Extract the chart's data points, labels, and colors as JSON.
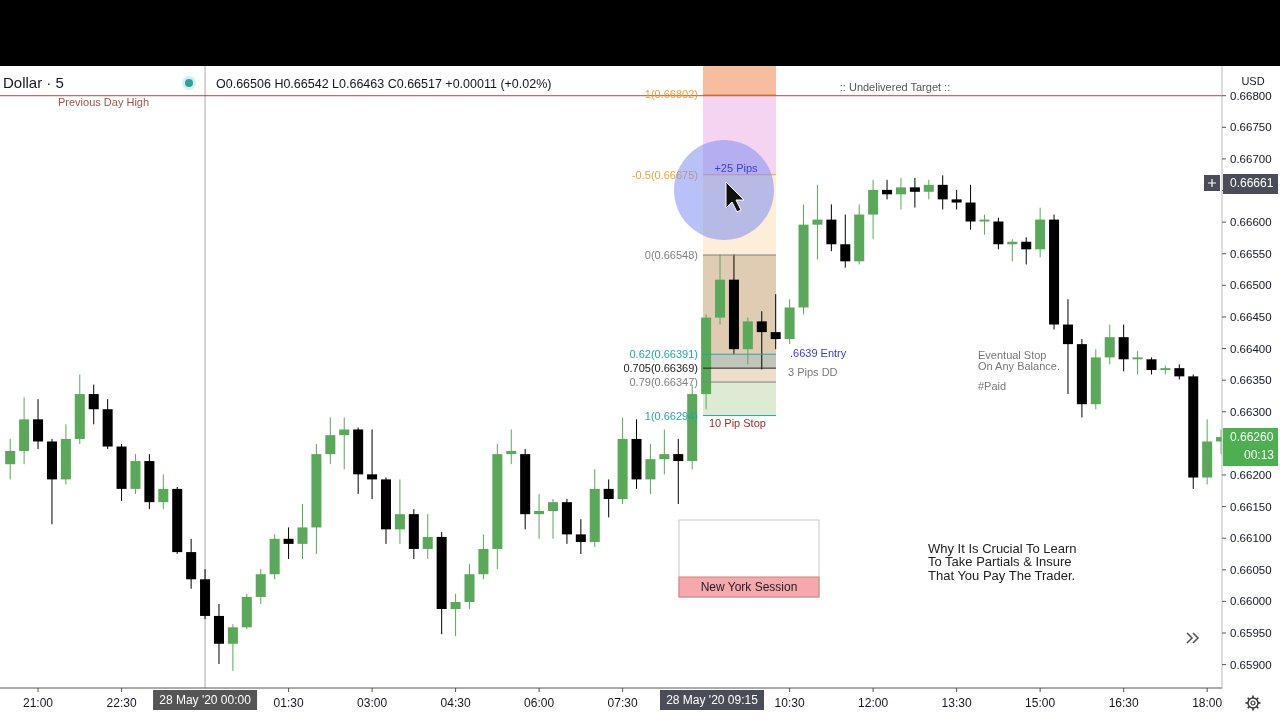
{
  "chart_data": {
    "type": "candlestick",
    "title": "Dollar · 5",
    "subtitle": "O0.66506 H0.66542 L0.66463 C0.66517 +0.00011 (+0.02%)",
    "ylabel": "USD",
    "xlim": [
      "2020-05-27T20:19",
      "2020-05-28T18:16"
    ],
    "ylim": [
      0.65863,
      0.66847
    ],
    "xticks": [
      {
        "value": "2020-05-27T21:00",
        "label": "21:00"
      },
      {
        "value": "2020-05-27T22:30",
        "label": "22:30"
      },
      {
        "value": "2020-05-28T01:30",
        "label": "01:30"
      },
      {
        "value": "2020-05-28T03:00",
        "label": "03:00"
      },
      {
        "value": "2020-05-28T04:30",
        "label": "04:30"
      },
      {
        "value": "2020-05-28T06:00",
        "label": "06:00"
      },
      {
        "value": "2020-05-28T07:30",
        "label": "07:30"
      },
      {
        "value": "2020-05-28T10:30",
        "label": "10:30"
      },
      {
        "value": "2020-05-28T12:00",
        "label": "12:00"
      },
      {
        "value": "2020-05-28T13:30",
        "label": "13:30"
      },
      {
        "value": "2020-05-28T15:00",
        "label": "15:00"
      },
      {
        "value": "2020-05-28T16:30",
        "label": "16:30"
      },
      {
        "value": "2020-05-28T18:00",
        "label": "18:00"
      }
    ],
    "yticks": [
      {
        "value": 0.659,
        "label": "0.65900"
      },
      {
        "value": 0.6595,
        "label": "0.65950"
      },
      {
        "value": 0.66,
        "label": "0.66000"
      },
      {
        "value": 0.6605,
        "label": "0.66050"
      },
      {
        "value": 0.661,
        "label": "0.66100"
      },
      {
        "value": 0.6615,
        "label": "0.66150"
      },
      {
        "value": 0.662,
        "label": "0.66200"
      },
      {
        "value": 0.663,
        "label": "0.66300"
      },
      {
        "value": 0.6635,
        "label": "0.66350"
      },
      {
        "value": 0.664,
        "label": "0.66400"
      },
      {
        "value": 0.6645,
        "label": "0.66450"
      },
      {
        "value": 0.665,
        "label": "0.66500"
      },
      {
        "value": 0.6655,
        "label": "0.66550"
      },
      {
        "value": 0.666,
        "label": "0.66600"
      },
      {
        "value": 0.6665,
        "label": null
      },
      {
        "value": 0.667,
        "label": "0.66700"
      },
      {
        "value": 0.6675,
        "label": "0.66750"
      },
      {
        "value": 0.668,
        "label": "0.66800"
      }
    ],
    "series": [
      {
        "colors": [
          "#5aa85a",
          "#5aa85a",
          "#000000",
          "#000000",
          "#5aa85a",
          "#5aa85a",
          "#000000",
          "#000000",
          "#000000",
          "#5aa85a",
          "#000000",
          "#5aa85a",
          "#000000",
          "#000000",
          "#000000",
          "#000000",
          "#5aa85a",
          "#5aa85a",
          "#5aa85a",
          "#5aa85a",
          "#000000",
          "#5aa85a",
          "#5aa85a",
          "#5aa85a",
          "#5aa85a",
          "#000000",
          "#000000",
          "#000000",
          "#5aa85a",
          "#000000",
          "#5aa85a",
          "#000000",
          "#5aa85a",
          "#5aa85a",
          "#5aa85a",
          "#5aa85a",
          "#5aa85a",
          "#000000",
          "#5aa85a",
          "#5aa85a",
          "#000000",
          "#000000",
          "#5aa85a",
          "#000000",
          "#5aa85a",
          "#000000",
          "#5aa85a",
          "#5aa85a",
          "#000000",
          "#5aa85a",
          "#5aa85a",
          "#5aa85a",
          "#000000",
          "#5aa85a",
          "#000000",
          "#000000",
          "#5aa85a",
          "#5aa85a",
          "#5aa85a",
          "#000000",
          "#000000",
          "#5aa85a",
          "#5aa85a",
          "#000000",
          "#5aa85a",
          "#000000",
          "#5aa85a",
          "#000000",
          "#000000",
          "#000000",
          "#5aa85a",
          "#000000",
          "#5aa85a",
          "#000000",
          "#5aa85a",
          "#000000",
          "#000000",
          "#000000",
          "#5aa85a",
          "#5aa85a",
          "#000000",
          "#5aa85a",
          "#000000",
          "#5aa85a",
          "#000000",
          "#000000",
          "#5aa85a",
          "#5aa85a"
        ],
        "x": [
          "2020-05-27T20:30",
          "2020-05-27T20:45",
          "2020-05-27T21:00",
          "2020-05-27T21:15",
          "2020-05-27T21:30",
          "2020-05-27T21:45",
          "2020-05-27T22:00",
          "2020-05-27T22:15",
          "2020-05-27T22:30",
          "2020-05-27T22:45",
          "2020-05-27T23:00",
          "2020-05-27T23:15",
          "2020-05-27T23:30",
          "2020-05-27T23:45",
          "2020-05-28T00:00",
          "2020-05-28T00:15",
          "2020-05-28T00:30",
          "2020-05-28T00:45",
          "2020-05-28T01:00",
          "2020-05-28T01:15",
          "2020-05-28T01:30",
          "2020-05-28T01:45",
          "2020-05-28T02:00",
          "2020-05-28T02:15",
          "2020-05-28T02:30",
          "2020-05-28T02:45",
          "2020-05-28T03:00",
          "2020-05-28T03:15",
          "2020-05-28T03:30",
          "2020-05-28T03:45",
          "2020-05-28T04:00",
          "2020-05-28T04:15",
          "2020-05-28T04:30",
          "2020-05-28T04:45",
          "2020-05-28T05:00",
          "2020-05-28T05:15",
          "2020-05-28T05:30",
          "2020-05-28T05:45",
          "2020-05-28T06:00",
          "2020-05-28T06:15",
          "2020-05-28T06:30",
          "2020-05-28T06:45",
          "2020-05-28T07:00",
          "2020-05-28T07:15",
          "2020-05-28T07:30",
          "2020-05-28T07:45",
          "2020-05-28T08:00",
          "2020-05-28T08:15",
          "2020-05-28T08:30",
          "2020-05-28T08:45",
          "2020-05-28T09:00",
          "2020-05-28T09:15",
          "2020-05-28T09:30",
          "2020-05-28T09:45",
          "2020-05-28T10:00",
          "2020-05-28T10:15",
          "2020-05-28T10:30",
          "2020-05-28T10:45",
          "2020-05-28T11:00",
          "2020-05-28T11:15",
          "2020-05-28T11:30",
          "2020-05-28T11:45",
          "2020-05-28T12:00",
          "2020-05-28T12:15",
          "2020-05-28T12:30",
          "2020-05-28T12:45",
          "2020-05-28T13:00",
          "2020-05-28T13:15",
          "2020-05-28T13:30",
          "2020-05-28T13:45",
          "2020-05-28T14:00",
          "2020-05-28T14:15",
          "2020-05-28T14:30",
          "2020-05-28T14:45",
          "2020-05-28T15:00",
          "2020-05-28T15:15",
          "2020-05-28T15:30",
          "2020-05-28T15:45",
          "2020-05-28T16:00",
          "2020-05-28T16:15",
          "2020-05-28T16:30",
          "2020-05-28T16:45",
          "2020-05-28T17:00",
          "2020-05-28T17:15",
          "2020-05-28T17:30",
          "2020-05-28T17:45",
          "2020-05-28T18:00",
          "2020-05-28T18:15"
        ],
        "ohlc": [
          [
            0.66217,
            0.66257,
            0.66193,
            0.66238
          ],
          [
            0.66238,
            0.66323,
            0.66217,
            0.66288
          ],
          [
            0.66288,
            0.6632,
            0.66241,
            0.66253
          ],
          [
            0.66253,
            0.66257,
            0.66122,
            0.66193
          ],
          [
            0.66193,
            0.6628,
            0.66185,
            0.66257
          ],
          [
            0.66257,
            0.66359,
            0.66249,
            0.66328
          ],
          [
            0.66328,
            0.66343,
            0.6628,
            0.66304
          ],
          [
            0.66304,
            0.6632,
            0.66241,
            0.66245
          ],
          [
            0.66245,
            0.66249,
            0.66159,
            0.66178
          ],
          [
            0.66178,
            0.66233,
            0.6617,
            0.66222
          ],
          [
            0.66222,
            0.66233,
            0.66146,
            0.66157
          ],
          [
            0.66157,
            0.66201,
            0.66146,
            0.66178
          ],
          [
            0.66178,
            0.66181,
            0.66075,
            0.66078
          ],
          [
            0.66078,
            0.66099,
            0.6602,
            0.66035
          ],
          [
            0.66035,
            0.66051,
            0.65972,
            0.65977
          ],
          [
            0.65977,
            0.65996,
            0.65901,
            0.65933
          ],
          [
            0.65933,
            0.65964,
            0.6589,
            0.65959
          ],
          [
            0.65959,
            0.66012,
            0.65956,
            0.66007
          ],
          [
            0.66007,
            0.66051,
            0.65996,
            0.66043
          ],
          [
            0.66043,
            0.66106,
            0.66035,
            0.66099
          ],
          [
            0.66099,
            0.66117,
            0.66067,
            0.66091
          ],
          [
            0.66091,
            0.66154,
            0.66067,
            0.66117
          ],
          [
            0.66117,
            0.66249,
            0.66075,
            0.66233
          ],
          [
            0.66233,
            0.66291,
            0.66217,
            0.66263
          ],
          [
            0.66263,
            0.66291,
            0.66209,
            0.66272
          ],
          [
            0.66272,
            0.66275,
            0.6617,
            0.66201
          ],
          [
            0.66201,
            0.66272,
            0.66162,
            0.66193
          ],
          [
            0.66193,
            0.66196,
            0.66091,
            0.66114
          ],
          [
            0.66114,
            0.66193,
            0.66091,
            0.66138
          ],
          [
            0.66138,
            0.66146,
            0.66067,
            0.66083
          ],
          [
            0.66083,
            0.66138,
            0.66067,
            0.66102
          ],
          [
            0.66102,
            0.6611,
            0.65948,
            0.65988
          ],
          [
            0.65988,
            0.66012,
            0.65945,
            0.65999
          ],
          [
            0.65999,
            0.66059,
            0.65988,
            0.66043
          ],
          [
            0.66043,
            0.66106,
            0.66035,
            0.66083
          ],
          [
            0.66083,
            0.66249,
            0.66051,
            0.66233
          ],
          [
            0.66233,
            0.66272,
            0.66217,
            0.66238
          ],
          [
            0.66233,
            0.66241,
            0.66114,
            0.66138
          ],
          [
            0.66138,
            0.6617,
            0.66099,
            0.66143
          ],
          [
            0.66143,
            0.66162,
            0.66099,
            0.66157
          ],
          [
            0.66157,
            0.66162,
            0.66091,
            0.66106
          ],
          [
            0.66106,
            0.6613,
            0.66075,
            0.66094
          ],
          [
            0.66094,
            0.66209,
            0.66086,
            0.66178
          ],
          [
            0.66178,
            0.66193,
            0.66133,
            0.66162
          ],
          [
            0.66162,
            0.66291,
            0.66154,
            0.66257
          ],
          [
            0.66257,
            0.66288,
            0.66178,
            0.66193
          ],
          [
            0.66193,
            0.66249,
            0.6617,
            0.66225
          ],
          [
            0.66225,
            0.66272,
            0.66201,
            0.66233
          ],
          [
            0.66233,
            0.66257,
            0.66154,
            0.66222
          ],
          [
            0.66222,
            0.66343,
            0.66209,
            0.66328
          ],
          [
            0.66328,
            0.66454,
            0.66304,
            0.66449
          ],
          [
            0.66449,
            0.66549,
            0.66438,
            0.66509
          ],
          [
            0.66509,
            0.66549,
            0.66391,
            0.66399
          ],
          [
            0.66399,
            0.66449,
            0.66375,
            0.66443
          ],
          [
            0.66443,
            0.66459,
            0.66367,
            0.66426
          ],
          [
            0.66426,
            0.66486,
            0.66399,
            0.66415
          ],
          [
            0.66415,
            0.66478,
            0.66407,
            0.66465
          ],
          [
            0.66465,
            0.66628,
            0.66454,
            0.66596
          ],
          [
            0.66596,
            0.66659,
            0.66541,
            0.66604
          ],
          [
            0.66604,
            0.66628,
            0.66554,
            0.66565
          ],
          [
            0.66565,
            0.66612,
            0.66528,
            0.66538
          ],
          [
            0.66538,
            0.66628,
            0.66533,
            0.66612
          ],
          [
            0.66612,
            0.66667,
            0.66573,
            0.66651
          ],
          [
            0.66651,
            0.66667,
            0.66636,
            0.66644
          ],
          [
            0.66644,
            0.6667,
            0.6662,
            0.66655
          ],
          [
            0.66655,
            0.6667,
            0.66623,
            0.66648
          ],
          [
            0.66648,
            0.66667,
            0.66636,
            0.66659
          ],
          [
            0.66659,
            0.66674,
            0.6662,
            0.66636
          ],
          [
            0.66636,
            0.66651,
            0.6662,
            0.66631
          ],
          [
            0.66631,
            0.66659,
            0.66588,
            0.66601
          ],
          [
            0.66601,
            0.66612,
            0.6658,
            0.66604
          ],
          [
            0.66601,
            0.66607,
            0.66557,
            0.66565
          ],
          [
            0.66565,
            0.66573,
            0.66538,
            0.66569
          ],
          [
            0.66569,
            0.66576,
            0.66533,
            0.66557
          ],
          [
            0.66557,
            0.66623,
            0.66544,
            0.66604
          ],
          [
            0.66604,
            0.66612,
            0.6643,
            0.66438
          ],
          [
            0.66438,
            0.66478,
            0.66328,
            0.66407
          ],
          [
            0.66407,
            0.66415,
            0.66291,
            0.66312
          ],
          [
            0.66312,
            0.66399,
            0.66304,
            0.66386
          ],
          [
            0.66386,
            0.66438,
            0.66375,
            0.66418
          ],
          [
            0.66418,
            0.66438,
            0.66364,
            0.66383
          ],
          [
            0.66383,
            0.66396,
            0.66359,
            0.66386
          ],
          [
            0.66383,
            0.66386,
            0.66359,
            0.66366
          ],
          [
            0.66366,
            0.66373,
            0.66359,
            0.66369
          ],
          [
            0.66369,
            0.66375,
            0.66351,
            0.66356
          ],
          [
            0.66356,
            0.66359,
            0.66178,
            0.66196
          ],
          [
            0.66196,
            0.66288,
            0.66185,
            0.66253
          ],
          [
            0.66253,
            0.66272,
            0.66233,
            0.6626
          ]
        ]
      }
    ],
    "bands": [
      {
        "axis": "y",
        "from": 0.66802,
        "to": 0.66847,
        "color": "#f5b18e"
      },
      {
        "axis": "y",
        "from": 0.66675,
        "to": 0.66802,
        "color": "#f3cdee"
      },
      {
        "axis": "y",
        "from": 0.66548,
        "to": 0.66675,
        "color": "#fdebd4"
      },
      {
        "axis": "y",
        "from": 0.66391,
        "to": 0.66548,
        "color": "#d9c3a6"
      },
      {
        "axis": "y",
        "from": 0.66369,
        "to": 0.66391,
        "color": "#b9bbb2"
      },
      {
        "axis": "y",
        "from": 0.66347,
        "to": 0.66369,
        "color": "#ead7c2"
      },
      {
        "axis": "y",
        "from": 0.66294,
        "to": 0.66347,
        "color": "#d7e8cc"
      }
    ],
    "ref_lines": [
      {
        "axis": "y",
        "value": 0.668,
        "label": "Previous Day High",
        "color": "#a0524a"
      },
      {
        "axis": "y",
        "value": 0.66802,
        "label": "1(0.66802)",
        "color": "#f0a030"
      },
      {
        "axis": "y",
        "value": 0.66675,
        "label": "-0.5(0.66675)",
        "color": "#f0a030"
      },
      {
        "axis": "y",
        "value": 0.66548,
        "label": "0(0.66548)",
        "color": "#808080"
      },
      {
        "axis": "y",
        "value": 0.66391,
        "label": "0.62(0.66391)",
        "color": "#26a6a0"
      },
      {
        "axis": "y",
        "value": 0.66369,
        "label": "0.705(0.66369)",
        "color": "#222222"
      },
      {
        "axis": "y",
        "value": 0.66347,
        "label": "0.79(0.66347)",
        "color": "#808080"
      },
      {
        "axis": "y",
        "value": 0.66294,
        "label": "1(0.66294)",
        "color": "#26a6a0"
      },
      {
        "axis": "x",
        "value": "2020-05-28T00:00",
        "label": "28 May '20 00:00",
        "color": "#b8b8b8"
      }
    ],
    "annotations": [
      ":: Undelivered Target ::",
      "+25 Pips",
      "10 Pip Stop",
      ".6639 Entry",
      "3 Pips DD",
      "Eventual Stop\nOn Any Balance.",
      "#Paid",
      "Why It Is Crucial To Learn\nTo Take Partials & Insure\nThat You Pay The Trader.",
      "New York Session",
      "28 May '20 09:15",
      "0.66661",
      "0.66260\n00:13"
    ]
  }
}
